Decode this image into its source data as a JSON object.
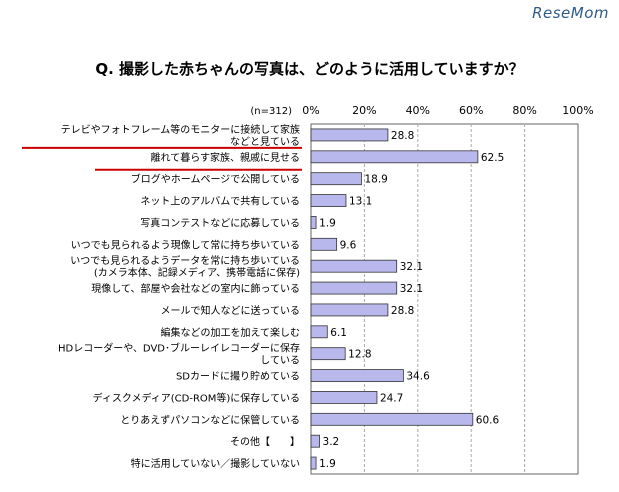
{
  "brand": "ReseMom",
  "title": "Q. 撮影した赤ちゃんの写真は、どのように活用していますか？",
  "chart_data": {
    "type": "bar",
    "orientation": "horizontal",
    "n_label": "(n=312)",
    "xlim": [
      0,
      100
    ],
    "ticks": [
      "0%",
      "20%",
      "40%",
      "60%",
      "80%",
      "100%"
    ],
    "tick_values": [
      0,
      20,
      40,
      60,
      80,
      100
    ],
    "grid": true,
    "bar_color": "#b8b8ec",
    "highlight_color": "#cc0000",
    "categories": [
      [
        "テレビやフォトフレーム等のモニターに接続して家族",
        "などと見ている"
      ],
      [
        "離れて暮らす家族、親戚に見せる"
      ],
      [
        "ブログやホームページで公開している"
      ],
      [
        "ネット上のアルバムで共有している"
      ],
      [
        "写真コンテストなどに応募している"
      ],
      [
        "いつでも見られるよう現像して常に持ち歩いている"
      ],
      [
        "いつでも見られるようデータを常に持ち歩いている",
        "(カメラ本体、記録メディア、携帯電話に保存)"
      ],
      [
        "現像して、部屋や会社などの室内に飾っている"
      ],
      [
        "メールで知人などに送っている"
      ],
      [
        "編集などの加工を加えて楽しむ"
      ],
      [
        "HDレコーダーや、DVD･ブルーレイレコーダーに保存",
        "している"
      ],
      [
        "SDカードに撮り貯めている"
      ],
      [
        "ディスクメディア(CD-ROM等)に保存している"
      ],
      [
        "とりあえずパソコンなどに保管している"
      ],
      [
        "その他【　　】"
      ],
      [
        "特に活用していない／撮影していない"
      ]
    ],
    "values": [
      28.8,
      62.5,
      18.9,
      13.1,
      1.9,
      9.6,
      32.1,
      32.1,
      28.8,
      6.1,
      12.8,
      34.6,
      24.7,
      60.6,
      3.2,
      1.9
    ],
    "value_labels": [
      "28.8",
      "62.5",
      "18.9",
      "13.1",
      "1.9",
      "9.6",
      "32.1",
      "32.1",
      "28.8",
      "6.1",
      "12.8",
      "34.6",
      "24.7",
      "60.6",
      "3.2",
      "1.9"
    ],
    "highlighted": [
      0,
      1
    ]
  }
}
